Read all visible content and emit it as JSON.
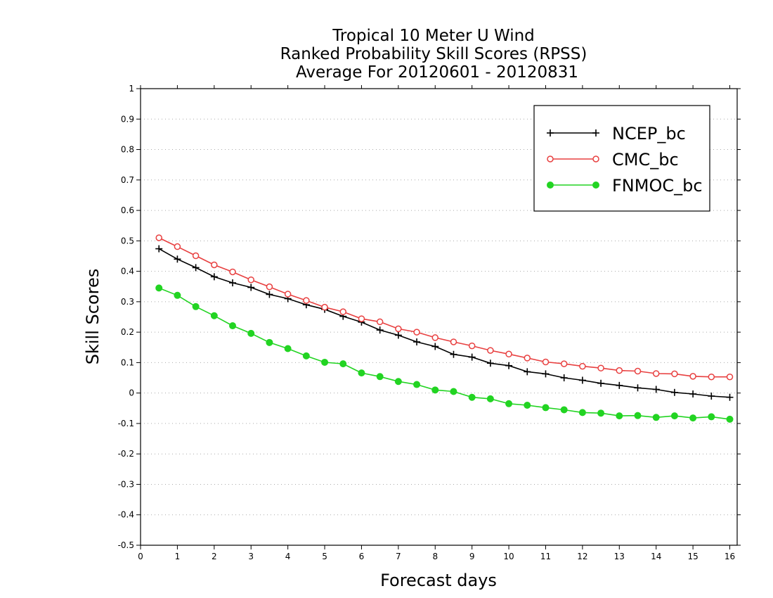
{
  "chart_data": {
    "type": "line",
    "title_lines": [
      "Tropical 10 Meter U Wind",
      "Ranked Probability Skill Scores (RPSS)",
      "Average For 20120601 - 20120831"
    ],
    "xlabel": "Forecast days",
    "ylabel": "Skill Scores",
    "xlim": [
      0,
      16.2
    ],
    "ylim": [
      -0.5,
      1
    ],
    "x_ticks": [
      0,
      1,
      2,
      3,
      4,
      5,
      6,
      7,
      8,
      9,
      10,
      11,
      12,
      13,
      14,
      15,
      16
    ],
    "y_ticks": [
      -0.5,
      -0.4,
      -0.3,
      -0.2,
      -0.1,
      0,
      0.1,
      0.2,
      0.3,
      0.4,
      0.5,
      0.6,
      0.7,
      0.8,
      0.9,
      1
    ],
    "y_tick_labels": [
      "-0.5",
      "-0.4",
      "-0.3",
      "-0.2",
      "-0.1",
      "0",
      "0.1",
      "0.2",
      "0.3",
      "0.4",
      "0.5",
      "0.6",
      "0.7",
      "0.8",
      "0.9",
      "1"
    ],
    "grid": "horizontal dotted",
    "legend_position": "top-right",
    "x": [
      0.5,
      1,
      1.5,
      2,
      2.5,
      3,
      3.5,
      4,
      4.5,
      5,
      5.5,
      6,
      6.5,
      7,
      7.5,
      8,
      8.5,
      9,
      9.5,
      10,
      10.5,
      11,
      11.5,
      12,
      12.5,
      13,
      13.5,
      14,
      14.5,
      15,
      15.5,
      16
    ],
    "series": [
      {
        "name": "NCEP_bc",
        "color": "#000000",
        "marker": "plus",
        "values": [
          0.474,
          0.44,
          0.412,
          0.382,
          0.362,
          0.347,
          0.324,
          0.31,
          0.29,
          0.275,
          0.252,
          0.233,
          0.207,
          0.19,
          0.168,
          0.153,
          0.127,
          0.118,
          0.098,
          0.09,
          0.07,
          0.063,
          0.05,
          0.042,
          0.032,
          0.025,
          0.017,
          0.012,
          0.002,
          -0.003,
          -0.01,
          -0.014
        ]
      },
      {
        "name": "CMC_bc",
        "color": "#e84040",
        "marker": "open-circle",
        "values": [
          0.51,
          0.481,
          0.451,
          0.421,
          0.398,
          0.372,
          0.349,
          0.325,
          0.304,
          0.282,
          0.267,
          0.244,
          0.234,
          0.211,
          0.2,
          0.182,
          0.168,
          0.155,
          0.14,
          0.128,
          0.115,
          0.102,
          0.096,
          0.088,
          0.082,
          0.074,
          0.072,
          0.064,
          0.063,
          0.055,
          0.053,
          0.053
        ]
      },
      {
        "name": "FNMOC_bc",
        "color": "#22d422",
        "marker": "filled-circle",
        "values": [
          0.345,
          0.321,
          0.284,
          0.254,
          0.221,
          0.196,
          0.166,
          0.146,
          0.122,
          0.101,
          0.096,
          0.066,
          0.054,
          0.038,
          0.028,
          0.01,
          0.005,
          -0.014,
          -0.019,
          -0.035,
          -0.04,
          -0.048,
          -0.055,
          -0.064,
          -0.066,
          -0.075,
          -0.074,
          -0.08,
          -0.075,
          -0.082,
          -0.078,
          -0.086
        ]
      }
    ]
  }
}
